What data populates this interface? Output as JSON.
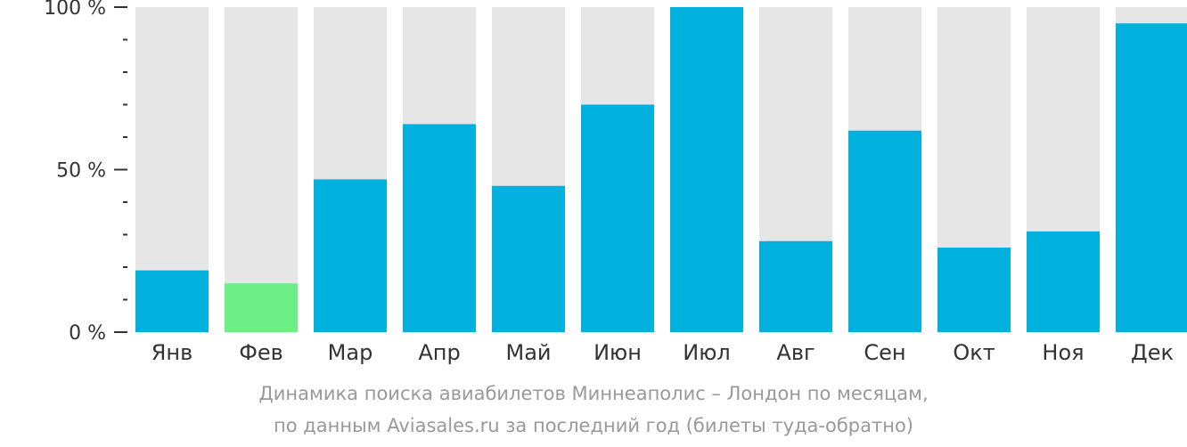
{
  "chart_data": {
    "type": "bar",
    "categories": [
      "Янв",
      "Фев",
      "Мар",
      "Апр",
      "Май",
      "Июн",
      "Июл",
      "Авг",
      "Сен",
      "Окт",
      "Ноя",
      "Дек"
    ],
    "values": [
      19,
      15,
      47,
      64,
      45,
      70,
      100,
      28,
      62,
      26,
      31,
      95
    ],
    "ylim": [
      0,
      100
    ],
    "yticks": [
      {
        "value": 0,
        "label": "0 %"
      },
      {
        "value": 50,
        "label": "50 %"
      },
      {
        "value": 100,
        "label": "100 %"
      }
    ],
    "minor_tick_step": 10,
    "highlight_index": 1,
    "colors": {
      "bar": "#00b0dd",
      "highlight": "#6bef86",
      "background_bar": "#e6e6e6",
      "axis": "#333333"
    },
    "caption": [
      "Динамика поиска авиабилетов Миннеаполис – Лондон по месяцам,",
      "по данным Aviasales.ru за последний год (билеты туда-обратно)"
    ]
  }
}
